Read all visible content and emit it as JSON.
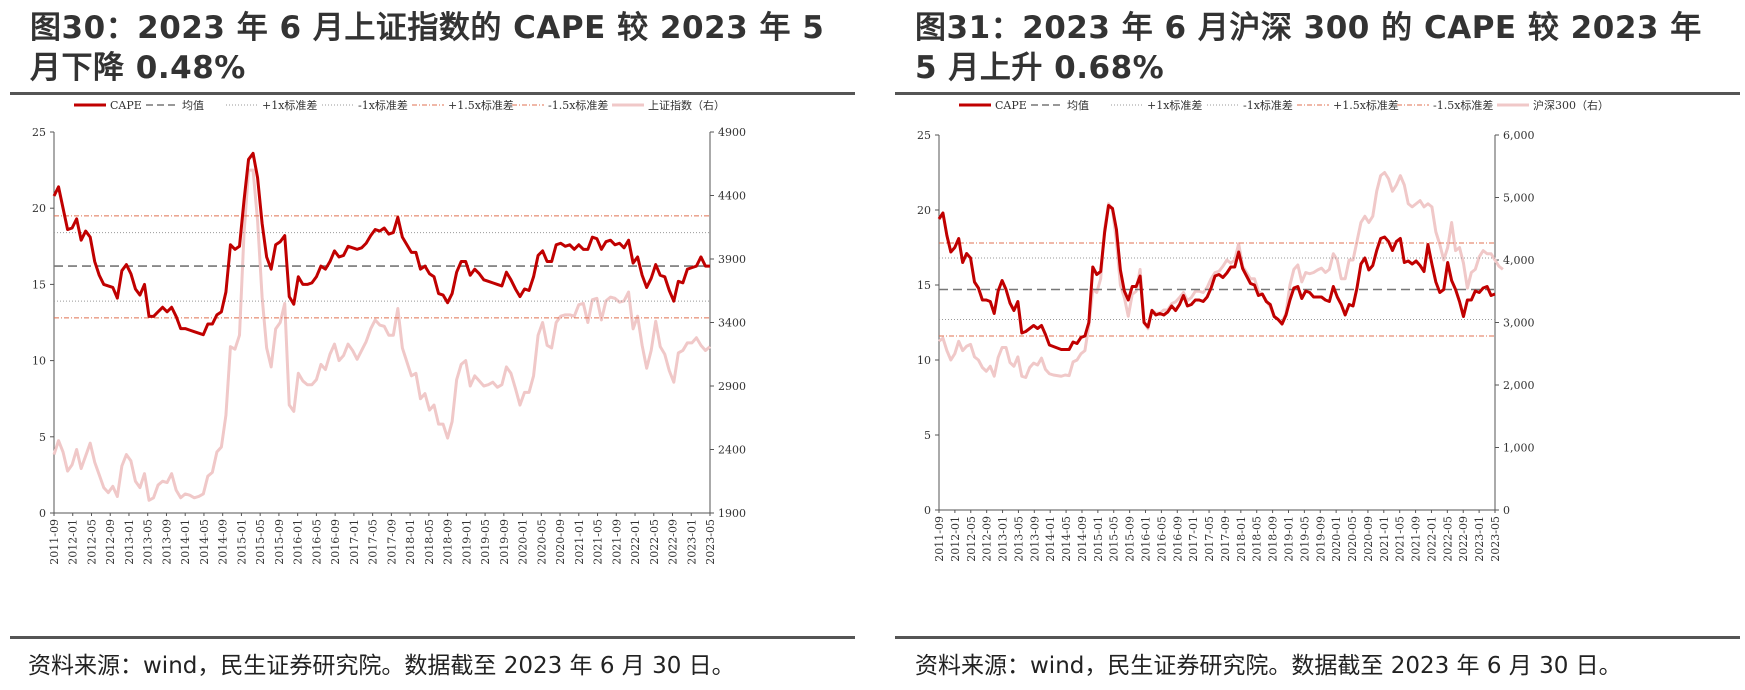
{
  "panels": [
    {
      "title": "图30：2023 年 6 月上证指数的 CAPE 较 2023 年 5 月下降 0.48%",
      "source": "资料来源：wind，民生证券研究院。数据截至 2023 年 6 月 30 日。"
    },
    {
      "title": "图31：2023 年 6 月沪深 300 的 CAPE 较 2023 年 5 月上升 0.68%",
      "source": "资料来源：wind，民生证券研究院。数据截至 2023 年 6 月 30 日。"
    }
  ],
  "chart_data": [
    {
      "type": "line",
      "title": "",
      "legend": [
        "CAPE",
        "均值",
        "+1x标准差",
        "-1x标准差",
        "+1.5x标准差",
        "-1.5x标准差",
        "上证指数（右）"
      ],
      "legend_position": "top",
      "x_tick_labels": [
        "2011-09",
        "2012-01",
        "2012-05",
        "2012-09",
        "2013-01",
        "2013-05",
        "2013-09",
        "2014-01",
        "2014-05",
        "2014-09",
        "2015-01",
        "2015-05",
        "2015-09",
        "2016-01",
        "2016-05",
        "2016-09",
        "2017-01",
        "2017-05",
        "2017-09",
        "2018-01",
        "2018-05",
        "2018-09",
        "2019-01",
        "2019-05",
        "2019-09",
        "2020-01",
        "2020-05",
        "2020-09",
        "2021-01",
        "2021-05",
        "2021-09",
        "2022-01",
        "2022-05",
        "2022-09",
        "2023-01",
        "2023-05"
      ],
      "ylim_left": [
        0,
        25
      ],
      "yticks_left": [
        "0",
        "5",
        "10",
        "15",
        "20",
        "25"
      ],
      "ylim_right": [
        1900,
        4900
      ],
      "yticks_right": [
        "1900",
        "2400",
        "2900",
        "3400",
        "3900",
        "4400",
        "4900"
      ],
      "grid": false,
      "reference_lines": {
        "mean": 16.2,
        "plus_1sd": 18.4,
        "minus_1sd": 13.9,
        "plus_1_5sd": 19.5,
        "minus_1_5sd": 12.8
      },
      "series": [
        {
          "name": "CAPE",
          "axis": "left",
          "color": "#c00000",
          "values": [
            20.8,
            21.4,
            20.0,
            18.6,
            18.7,
            19.3,
            17.9,
            18.5,
            18.1,
            16.5,
            15.6,
            15.0,
            14.9,
            14.8,
            14.1,
            15.9,
            16.3,
            15.7,
            14.7,
            14.3,
            15.0,
            12.9,
            12.9,
            13.2,
            13.5,
            13.2,
            13.5,
            12.9,
            12.1,
            12.1,
            12.0,
            11.9,
            11.8,
            11.7,
            12.4,
            12.4,
            13.0,
            13.2,
            14.5,
            17.6,
            17.3,
            17.5,
            20.5,
            23.2,
            23.6,
            22.0,
            19.0,
            16.8,
            16.0,
            17.6,
            17.8,
            18.2,
            14.2,
            13.7,
            15.5,
            15.0,
            15.0,
            15.1,
            15.5,
            16.2,
            16.0,
            16.5,
            17.2,
            16.8,
            16.9,
            17.5,
            17.4,
            17.3,
            17.4,
            17.7,
            18.2,
            18.6,
            18.5,
            18.7,
            18.3,
            18.4,
            19.4,
            18.1,
            17.6,
            17.1,
            17.1,
            16.0,
            16.2,
            15.7,
            15.5,
            14.4,
            14.3,
            13.8,
            14.4,
            15.8,
            16.5,
            16.5,
            15.6,
            16.0,
            15.7,
            15.3,
            15.2,
            15.1,
            15.0,
            14.9,
            15.8,
            15.3,
            14.7,
            14.2,
            14.7,
            14.6,
            15.5,
            16.9,
            17.2,
            16.5,
            16.5,
            17.6,
            17.7,
            17.5,
            17.6,
            17.3,
            17.6,
            17.3,
            17.3,
            18.1,
            18.0,
            17.3,
            17.8,
            17.9,
            17.6,
            17.7,
            17.4,
            17.9,
            16.4,
            16.8,
            15.6,
            14.8,
            15.4,
            16.3,
            15.6,
            15.5,
            14.6,
            13.9,
            15.2,
            15.1,
            16.0,
            16.1,
            16.2,
            16.8,
            16.2,
            16.2
          ]
        },
        {
          "name": "上证指数（右）",
          "axis": "right",
          "color": "#f0c8c8",
          "values": [
            2360,
            2470,
            2380,
            2230,
            2280,
            2400,
            2250,
            2350,
            2450,
            2300,
            2200,
            2100,
            2060,
            2110,
            2030,
            2270,
            2360,
            2310,
            2150,
            2100,
            2210,
            2000,
            2020,
            2120,
            2150,
            2140,
            2210,
            2080,
            2020,
            2050,
            2040,
            2020,
            2030,
            2050,
            2190,
            2220,
            2380,
            2420,
            2670,
            3210,
            3190,
            3300,
            4100,
            4600,
            4600,
            4200,
            3600,
            3200,
            3050,
            3350,
            3400,
            3550,
            2750,
            2700,
            3000,
            2940,
            2910,
            2910,
            2950,
            3070,
            3030,
            3150,
            3230,
            3100,
            3140,
            3230,
            3180,
            3110,
            3180,
            3250,
            3350,
            3420,
            3380,
            3370,
            3300,
            3300,
            3510,
            3200,
            3090,
            2980,
            3000,
            2800,
            2840,
            2710,
            2750,
            2600,
            2600,
            2490,
            2620,
            2950,
            3070,
            3100,
            2900,
            2980,
            2940,
            2900,
            2910,
            2930,
            2890,
            2910,
            3050,
            3000,
            2880,
            2750,
            2850,
            2850,
            2980,
            3300,
            3400,
            3220,
            3200,
            3400,
            3450,
            3460,
            3460,
            3450,
            3540,
            3550,
            3400,
            3580,
            3590,
            3420,
            3570,
            3600,
            3590,
            3560,
            3570,
            3640,
            3350,
            3450,
            3220,
            3040,
            3180,
            3410,
            3210,
            3150,
            3020,
            2930,
            3160,
            3180,
            3240,
            3240,
            3280,
            3220,
            3180,
            3210
          ]
        }
      ]
    },
    {
      "type": "line",
      "title": "",
      "legend": [
        "CAPE",
        "均值",
        "+1x标准差",
        "-1x标准差",
        "+1.5x标准差",
        "-1.5x标准差",
        "沪深300（右）"
      ],
      "legend_position": "top",
      "x_tick_labels": [
        "2011-09",
        "2012-01",
        "2012-05",
        "2012-09",
        "2013-01",
        "2013-05",
        "2013-09",
        "2014-01",
        "2014-05",
        "2014-09",
        "2015-01",
        "2015-05",
        "2015-09",
        "2016-01",
        "2016-05",
        "2016-09",
        "2017-01",
        "2017-05",
        "2017-09",
        "2018-01",
        "2018-05",
        "2018-09",
        "2019-01",
        "2019-05",
        "2019-09",
        "2020-01",
        "2020-05",
        "2020-09",
        "2021-01",
        "2021-05",
        "2021-09",
        "2022-01",
        "2022-05",
        "2022-09",
        "2023-01",
        "2023-05"
      ],
      "ylim_left": [
        0,
        25
      ],
      "yticks_left": [
        "0",
        "5",
        "10",
        "15",
        "20",
        "25"
      ],
      "ylim_right": [
        0,
        6000
      ],
      "yticks_right": [
        "0",
        "1,000",
        "2,000",
        "3,000",
        "4,000",
        "5,000",
        "6,000"
      ],
      "grid": false,
      "reference_lines": {
        "mean": 14.7,
        "plus_1sd": 16.8,
        "minus_1sd": 12.7,
        "plus_1_5sd": 17.8,
        "minus_1_5sd": 11.6
      },
      "series": [
        {
          "name": "CAPE",
          "axis": "left",
          "color": "#c00000",
          "values": [
            19.4,
            19.8,
            18.3,
            17.2,
            17.5,
            18.1,
            16.5,
            17.1,
            16.8,
            15.2,
            14.8,
            14.0,
            14.0,
            13.9,
            13.1,
            14.6,
            15.3,
            14.7,
            13.8,
            13.3,
            13.9,
            11.8,
            11.9,
            12.1,
            12.3,
            12.1,
            12.3,
            11.7,
            11.0,
            10.9,
            10.8,
            10.7,
            10.7,
            10.7,
            11.2,
            11.1,
            11.5,
            11.6,
            12.5,
            16.2,
            15.7,
            15.9,
            18.5,
            20.3,
            20.1,
            18.7,
            16.0,
            14.6,
            14.0,
            14.9,
            14.9,
            15.6,
            12.5,
            12.2,
            13.3,
            13.0,
            13.1,
            13.0,
            13.2,
            13.6,
            13.3,
            13.7,
            14.3,
            13.6,
            13.7,
            14.0,
            14.0,
            13.9,
            14.2,
            14.8,
            15.6,
            15.7,
            15.5,
            15.8,
            16.2,
            16.2,
            17.2,
            16.1,
            15.6,
            15.1,
            15.0,
            14.3,
            14.4,
            13.9,
            13.7,
            12.9,
            12.7,
            12.4,
            13.0,
            14.0,
            14.8,
            14.9,
            14.1,
            14.6,
            14.5,
            14.2,
            14.2,
            14.2,
            14.0,
            13.9,
            14.9,
            14.2,
            13.7,
            13.0,
            13.7,
            13.6,
            14.8,
            16.4,
            16.8,
            16.0,
            16.3,
            17.3,
            18.1,
            18.2,
            17.9,
            17.3,
            17.9,
            18.1,
            16.5,
            16.6,
            16.4,
            16.6,
            16.3,
            15.9,
            17.7,
            16.4,
            15.2,
            14.5,
            14.7,
            16.5,
            15.3,
            14.7,
            13.9,
            12.9,
            14.0,
            14.0,
            14.6,
            14.5,
            14.8,
            14.9,
            14.3,
            14.4
          ]
        },
        {
          "name": "沪深300（右）",
          "axis": "right",
          "color": "#f0c8c8",
          "values": [
            2700,
            2750,
            2550,
            2400,
            2500,
            2700,
            2550,
            2620,
            2650,
            2450,
            2400,
            2280,
            2220,
            2300,
            2140,
            2440,
            2600,
            2600,
            2360,
            2300,
            2450,
            2140,
            2120,
            2280,
            2350,
            2320,
            2430,
            2250,
            2180,
            2160,
            2150,
            2140,
            2160,
            2150,
            2370,
            2400,
            2500,
            2550,
            2950,
            3530,
            3480,
            3700,
            4500,
            4900,
            4800,
            4300,
            3600,
            3400,
            3100,
            3450,
            3500,
            3850,
            3000,
            2900,
            3200,
            3150,
            3150,
            3200,
            3200,
            3300,
            3330,
            3400,
            3480,
            3350,
            3400,
            3500,
            3500,
            3480,
            3560,
            3700,
            3800,
            3820,
            3900,
            4000,
            3950,
            4000,
            4260,
            3900,
            3800,
            3700,
            3700,
            3500,
            3450,
            3350,
            3250,
            3100,
            3050,
            3000,
            3150,
            3600,
            3850,
            3920,
            3650,
            3800,
            3780,
            3800,
            3840,
            3870,
            3800,
            3850,
            4100,
            4000,
            3700,
            3700,
            4000,
            4000,
            4300,
            4600,
            4700,
            4600,
            4700,
            5100,
            5350,
            5400,
            5300,
            5100,
            5200,
            5350,
            5200,
            4900,
            4850,
            4900,
            4950,
            4850,
            4900,
            4850,
            4450,
            4250,
            4000,
            4200,
            4600,
            4150,
            4200,
            3950,
            3550,
            3800,
            3850,
            4050,
            4150,
            4100,
            4100,
            4000,
            3900,
            3850
          ]
        }
      ]
    }
  ]
}
